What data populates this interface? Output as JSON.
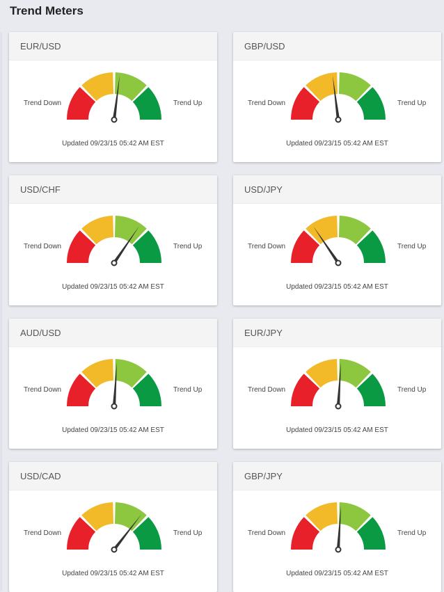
{
  "page": {
    "title": "Trend Meters"
  },
  "labels": {
    "down": "Trend Down",
    "up": "Trend Up"
  },
  "colors": {
    "segments": [
      "#e8202a",
      "#f2b928",
      "#8dc63f",
      "#0a9a44"
    ],
    "needle": "#333333"
  },
  "meters": [
    {
      "pair": "EUR/USD",
      "level": 0.54,
      "updated": "Updated 09/23/15 05:42 AM EST"
    },
    {
      "pair": "GBP/USD",
      "level": 0.46,
      "updated": "Updated 09/23/15 05:42 AM EST"
    },
    {
      "pair": "USD/CHF",
      "level": 0.69,
      "updated": "Updated 09/23/15 05:42 AM EST"
    },
    {
      "pair": "USD/JPY",
      "level": 0.31,
      "updated": "Updated 09/23/15 05:42 AM EST"
    },
    {
      "pair": "AUD/USD",
      "level": 0.52,
      "updated": "Updated 09/23/15 05:42 AM EST"
    },
    {
      "pair": "EUR/JPY",
      "level": 0.52,
      "updated": "Updated 09/23/15 05:42 AM EST"
    },
    {
      "pair": "USD/CAD",
      "level": 0.71,
      "updated": "Updated 09/23/15 05:42 AM EST"
    },
    {
      "pair": "GBP/JPY",
      "level": 0.52,
      "updated": "Updated 09/23/15 05:42 AM EST"
    }
  ]
}
